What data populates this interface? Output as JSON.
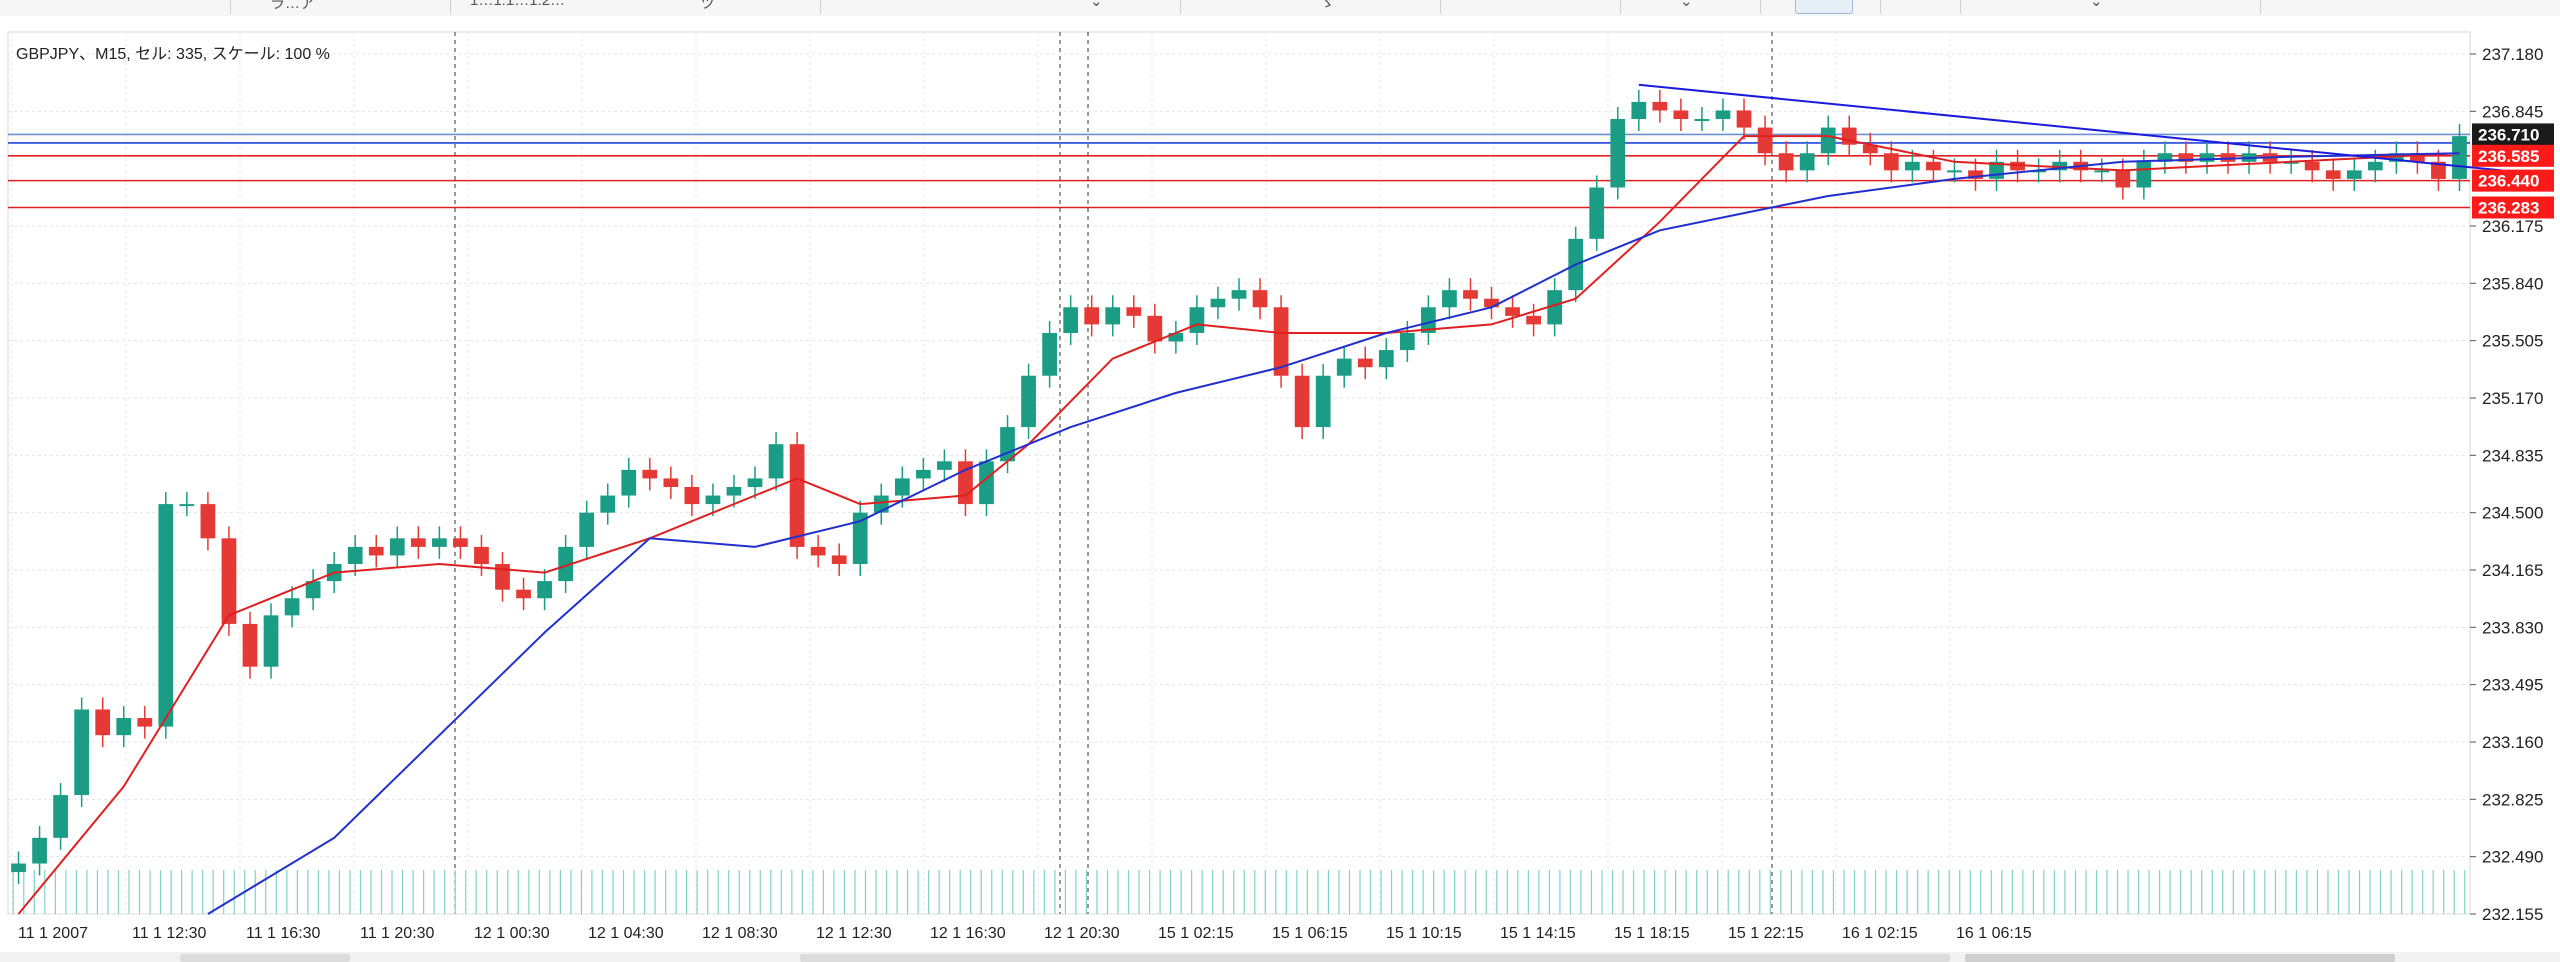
{
  "toolbar": {
    "items": [
      {
        "name": "toolbar-item-chart-type",
        "label": "ラ…ア"
      },
      {
        "name": "toolbar-item-period",
        "label": "1…1:1…1:2…"
      },
      {
        "name": "toolbar-item-tool",
        "label": "ツ"
      },
      {
        "name": "toolbar-item-dropdown",
        "label": "⌄"
      },
      {
        "name": "toolbar-item-indicator",
        "label": "ゞ"
      },
      {
        "name": "toolbar-item-trend",
        "label": "⌄"
      },
      {
        "name": "toolbar-item-objects",
        "label": "⌄"
      }
    ]
  },
  "chart_info": "GBPJPY、M15, セル: 335, スケール: 100 %",
  "chart_data": {
    "type": "line",
    "title": "GBPJPY、M15, セル: 335, スケール: 100 %",
    "symbol": "GBPJPY",
    "timeframe": "M15",
    "ylim": [
      232.155,
      237.25
    ],
    "grid": true,
    "y_ticks": [
      "237.180",
      "236.845",
      "236.175",
      "235.840",
      "235.505",
      "235.170",
      "234.835",
      "234.500",
      "234.165",
      "233.830",
      "233.495",
      "233.160",
      "232.825",
      "232.490",
      "232.155"
    ],
    "x_ticks": [
      "11 1 2007",
      "11 1 12:30",
      "11 1 16:30",
      "11 1 20:30",
      "12 1 00:30",
      "12 1 04:30",
      "12 1 08:30",
      "12 1 12:30",
      "12 1 16:30",
      "12 1 20:30",
      "15 1 02:15",
      "15 1 06:15",
      "15 1 10:15",
      "15 1 14:15",
      "15 1 18:15",
      "15 1 22:15",
      "16 1 02:15",
      "16 1 06:15"
    ],
    "price_labels": [
      {
        "value": "236.710",
        "color": "#1a1a1a"
      },
      {
        "value": "236.585",
        "color": "#ff1a1a"
      },
      {
        "value": "236.440",
        "color": "#ff1a1a"
      },
      {
        "value": "236.283",
        "color": "#ff1a1a"
      }
    ],
    "horizontal_lines": [
      {
        "value": 236.71,
        "color": "#6d8fd6"
      },
      {
        "value": 236.66,
        "color": "#2244dd"
      },
      {
        "value": 236.585,
        "color": "#e02020"
      },
      {
        "value": 236.44,
        "color": "#e02020"
      },
      {
        "value": 236.283,
        "color": "#e02020"
      }
    ],
    "period_separators": [
      3,
      12,
      20,
      28,
      41
    ],
    "trendline": {
      "from": [
        77,
        237.0
      ],
      "to": [
        118,
        236.5
      ],
      "color": "#1a1adf"
    },
    "close_points": [
      [
        0,
        232.45
      ],
      [
        1,
        232.6
      ],
      [
        2,
        232.85
      ],
      [
        3,
        233.35
      ],
      [
        4,
        233.2
      ],
      [
        5,
        233.3
      ],
      [
        6,
        233.25
      ],
      [
        7,
        234.55
      ],
      [
        8,
        234.55
      ],
      [
        9,
        234.35
      ],
      [
        10,
        233.85
      ],
      [
        11,
        233.6
      ],
      [
        12,
        233.9
      ],
      [
        13,
        234.0
      ],
      [
        14,
        234.1
      ],
      [
        15,
        234.2
      ],
      [
        16,
        234.3
      ],
      [
        17,
        234.25
      ],
      [
        18,
        234.35
      ],
      [
        19,
        234.3
      ],
      [
        20,
        234.35
      ],
      [
        21,
        234.3
      ],
      [
        22,
        234.2
      ],
      [
        23,
        234.05
      ],
      [
        24,
        234.0
      ],
      [
        25,
        234.1
      ],
      [
        26,
        234.3
      ],
      [
        27,
        234.5
      ],
      [
        28,
        234.6
      ],
      [
        29,
        234.75
      ],
      [
        30,
        234.7
      ],
      [
        31,
        234.65
      ],
      [
        32,
        234.55
      ],
      [
        33,
        234.6
      ],
      [
        34,
        234.65
      ],
      [
        35,
        234.7
      ],
      [
        36,
        234.9
      ],
      [
        37,
        234.3
      ],
      [
        38,
        234.25
      ],
      [
        39,
        234.2
      ],
      [
        40,
        234.5
      ],
      [
        41,
        234.6
      ],
      [
        42,
        234.7
      ],
      [
        43,
        234.75
      ],
      [
        44,
        234.8
      ],
      [
        45,
        234.55
      ],
      [
        46,
        234.8
      ],
      [
        47,
        235.0
      ],
      [
        48,
        235.3
      ],
      [
        49,
        235.55
      ],
      [
        50,
        235.7
      ],
      [
        51,
        235.6
      ],
      [
        52,
        235.7
      ],
      [
        53,
        235.65
      ],
      [
        54,
        235.5
      ],
      [
        55,
        235.55
      ],
      [
        56,
        235.7
      ],
      [
        57,
        235.75
      ],
      [
        58,
        235.8
      ],
      [
        59,
        235.7
      ],
      [
        60,
        235.3
      ],
      [
        61,
        235.0
      ],
      [
        62,
        235.3
      ],
      [
        63,
        235.4
      ],
      [
        64,
        235.35
      ],
      [
        65,
        235.45
      ],
      [
        66,
        235.55
      ],
      [
        67,
        235.7
      ],
      [
        68,
        235.8
      ],
      [
        69,
        235.75
      ],
      [
        70,
        235.7
      ],
      [
        71,
        235.65
      ],
      [
        72,
        235.6
      ],
      [
        73,
        235.8
      ],
      [
        74,
        236.1
      ],
      [
        75,
        236.4
      ],
      [
        76,
        236.8
      ],
      [
        77,
        236.9
      ],
      [
        78,
        236.85
      ],
      [
        79,
        236.8
      ],
      [
        80,
        236.8
      ],
      [
        81,
        236.85
      ],
      [
        82,
        236.75
      ],
      [
        83,
        236.6
      ],
      [
        84,
        236.5
      ],
      [
        85,
        236.6
      ],
      [
        86,
        236.75
      ],
      [
        87,
        236.65
      ],
      [
        88,
        236.6
      ],
      [
        89,
        236.5
      ],
      [
        90,
        236.55
      ],
      [
        91,
        236.5
      ],
      [
        92,
        236.5
      ],
      [
        93,
        236.45
      ],
      [
        94,
        236.55
      ],
      [
        95,
        236.5
      ],
      [
        96,
        236.5
      ],
      [
        97,
        236.55
      ],
      [
        98,
        236.5
      ],
      [
        99,
        236.5
      ],
      [
        100,
        236.4
      ],
      [
        101,
        236.55
      ],
      [
        102,
        236.6
      ],
      [
        103,
        236.55
      ],
      [
        104,
        236.6
      ],
      [
        105,
        236.55
      ],
      [
        106,
        236.6
      ],
      [
        107,
        236.55
      ],
      [
        108,
        236.55
      ],
      [
        109,
        236.5
      ],
      [
        110,
        236.45
      ],
      [
        111,
        236.5
      ],
      [
        112,
        236.55
      ],
      [
        113,
        236.6
      ],
      [
        114,
        236.55
      ],
      [
        115,
        236.45
      ],
      [
        116,
        236.7
      ]
    ],
    "series": [
      {
        "color": "#e02020",
        "values": [
          [
            0,
            231.95
          ],
          [
            5,
            232.9
          ],
          [
            10,
            233.9
          ],
          [
            15,
            234.15
          ],
          [
            20,
            234.2
          ],
          [
            25,
            234.15
          ],
          [
            30,
            234.35
          ],
          [
            35,
            234.6
          ],
          [
            37,
            234.7
          ],
          [
            40,
            234.55
          ],
          [
            45,
            234.6
          ],
          [
            48,
            234.9
          ],
          [
            52,
            235.4
          ],
          [
            56,
            235.6
          ],
          [
            60,
            235.55
          ],
          [
            65,
            235.55
          ],
          [
            70,
            235.6
          ],
          [
            74,
            235.75
          ],
          [
            78,
            236.2
          ],
          [
            82,
            236.7
          ],
          [
            86,
            236.7
          ],
          [
            92,
            236.55
          ],
          [
            100,
            236.5
          ],
          [
            108,
            236.55
          ],
          [
            116,
            236.6
          ]
        ]
      },
      {
        "color": "#2030d0",
        "values": [
          [
            9,
            231.95
          ],
          [
            15,
            232.6
          ],
          [
            20,
            233.2
          ],
          [
            25,
            233.8
          ],
          [
            30,
            234.35
          ],
          [
            35,
            234.3
          ],
          [
            40,
            234.45
          ],
          [
            45,
            234.75
          ],
          [
            50,
            235.0
          ],
          [
            55,
            235.2
          ],
          [
            60,
            235.35
          ],
          [
            65,
            235.55
          ],
          [
            70,
            235.7
          ],
          [
            74,
            235.95
          ],
          [
            78,
            236.15
          ],
          [
            82,
            236.25
          ],
          [
            86,
            236.35
          ],
          [
            92,
            236.45
          ],
          [
            100,
            236.55
          ],
          [
            108,
            236.58
          ],
          [
            116,
            236.6
          ]
        ]
      }
    ]
  }
}
